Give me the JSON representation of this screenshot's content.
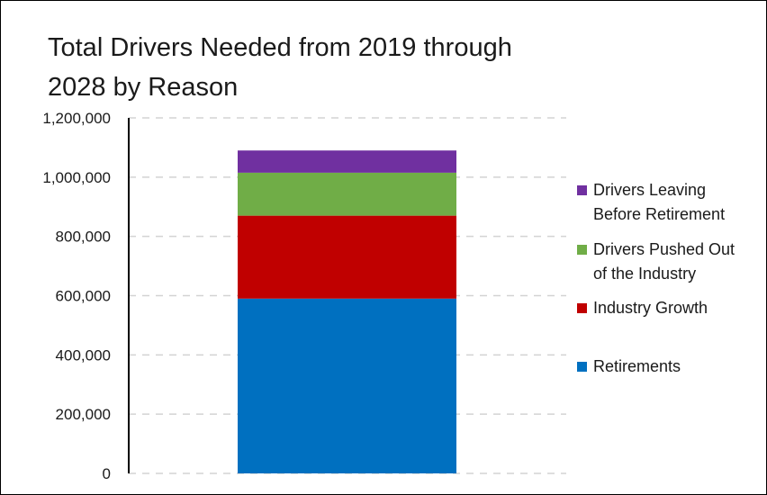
{
  "chart_data": {
    "type": "bar",
    "stacked": true,
    "title_lines": [
      "Total Drivers Needed from 2019 through",
      "2028 by Reason"
    ],
    "xlabel": "",
    "ylabel": "",
    "ylim": [
      0,
      1200000
    ],
    "y_ticks": [
      {
        "value": 0,
        "label": "0"
      },
      {
        "value": 200000,
        "label": "200,000"
      },
      {
        "value": 400000,
        "label": "400,000"
      },
      {
        "value": 600000,
        "label": "600,000"
      },
      {
        "value": 800000,
        "label": "800,000"
      },
      {
        "value": 1000000,
        "label": "1,000,000"
      },
      {
        "value": 1200000,
        "label": "1,200,000"
      }
    ],
    "grid": "horizontal dashed",
    "legend_position": "right",
    "categories": [
      ""
    ],
    "series": [
      {
        "name": "Retirements",
        "values": [
          590000
        ],
        "color": "#0070C0"
      },
      {
        "name": "Industry Growth",
        "values": [
          280000
        ],
        "color": "#C00000"
      },
      {
        "name": "Drivers Pushed Out of the Industry",
        "values": [
          145000
        ],
        "color": "#70AD47"
      },
      {
        "name": "Drivers Leaving Before Retirement",
        "values": [
          75000
        ],
        "color": "#7030A0"
      }
    ],
    "legend": [
      {
        "lines": [
          "Drivers Leaving",
          "Before Retirement"
        ],
        "color": "#7030A0"
      },
      {
        "lines": [
          "Drivers Pushed Out",
          "of the Industry"
        ],
        "color": "#70AD47"
      },
      {
        "lines": [
          "Industry Growth"
        ],
        "color": "#C00000"
      },
      {
        "lines": [
          "Retirements"
        ],
        "color": "#0070C0"
      }
    ]
  }
}
